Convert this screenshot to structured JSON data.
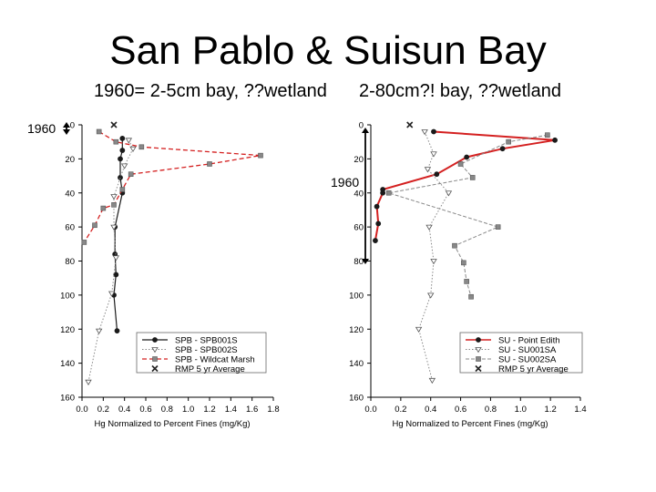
{
  "slide": {
    "title": "San Pablo & Suisun Bay",
    "subtitle_left": "1960= 2-5cm bay, ??wetland",
    "subtitle_right": "2-80cm?! bay, ??wetland"
  },
  "annotations": {
    "left_marker": "1960",
    "right_marker": "1960"
  },
  "colors": {
    "red": "#d42020",
    "dark": "#1a1a1a",
    "grey": "#888888",
    "axis": "#000000"
  },
  "chart_data": [
    {
      "type": "line",
      "orientation": "depth-profile",
      "xlabel": "Hg Normalized to Percent Fines (mg/Kg)",
      "ylabel": "",
      "xlim": [
        0,
        1.8
      ],
      "ylim": [
        0,
        160
      ],
      "xticks": [
        "0.0",
        "0.2",
        "0.4",
        "0.6",
        "0.8",
        "1.0",
        "1.2",
        "1.4",
        "1.6",
        "1.8"
      ],
      "yticks": [
        "0",
        "20",
        "40",
        "60",
        "80",
        "100",
        "120",
        "140",
        "160"
      ],
      "legend_position": "bottom-right",
      "series": [
        {
          "name": "SPB - SPB001S",
          "marker": "circle",
          "style": "solid-dark",
          "points": [
            [
              0.38,
              8
            ],
            [
              0.38,
              15
            ],
            [
              0.36,
              20
            ],
            [
              0.36,
              31
            ],
            [
              0.38,
              40
            ],
            [
              0.31,
              60
            ],
            [
              0.31,
              76
            ],
            [
              0.32,
              88
            ],
            [
              0.3,
              100
            ],
            [
              0.33,
              121
            ]
          ]
        },
        {
          "name": "SPB - SPB002S",
          "marker": "triangle",
          "style": "dotted-grey",
          "points": [
            [
              0.44,
              9
            ],
            [
              0.48,
              14
            ],
            [
              0.4,
              24
            ],
            [
              0.3,
              42
            ],
            [
              0.3,
              60
            ],
            [
              0.32,
              78
            ],
            [
              0.28,
              99
            ],
            [
              0.16,
              121
            ],
            [
              0.06,
              151
            ]
          ]
        },
        {
          "name": "SPB - Wildcat Marsh",
          "marker": "square",
          "style": "dashed-red",
          "points": [
            [
              0.16,
              4
            ],
            [
              0.32,
              10
            ],
            [
              0.56,
              13
            ],
            [
              1.68,
              18
            ],
            [
              1.2,
              23
            ],
            [
              0.46,
              29
            ],
            [
              0.38,
              38
            ],
            [
              0.3,
              47
            ],
            [
              0.2,
              49
            ],
            [
              0.12,
              59
            ],
            [
              0.02,
              69
            ]
          ]
        },
        {
          "name": "RMP 5 yr Average",
          "marker": "x",
          "style": "none",
          "points": [
            [
              0.3,
              0
            ]
          ]
        }
      ]
    },
    {
      "type": "line",
      "orientation": "depth-profile",
      "xlabel": "Hg Normalized to Percent Fines (mg/Kg)",
      "ylabel": "",
      "xlim": [
        0,
        1.4
      ],
      "ylim": [
        0,
        160
      ],
      "xticks": [
        "0.0",
        "0.2",
        "0.4",
        "0.6",
        "0.8",
        "1.0",
        "1.2",
        "1.4"
      ],
      "yticks": [
        "0",
        "20",
        "40",
        "60",
        "80",
        "100",
        "120",
        "140",
        "160"
      ],
      "legend_position": "bottom-right",
      "series": [
        {
          "name": "SU - Point Edith",
          "marker": "circle",
          "style": "solid-red",
          "points": [
            [
              0.42,
              4
            ],
            [
              1.23,
              9
            ],
            [
              0.88,
              14
            ],
            [
              0.64,
              19
            ],
            [
              0.44,
              29
            ],
            [
              0.08,
              38
            ],
            [
              0.08,
              40
            ],
            [
              0.04,
              48
            ],
            [
              0.05,
              58
            ],
            [
              0.03,
              68
            ]
          ]
        },
        {
          "name": "SU - SU001SA",
          "marker": "triangle",
          "style": "dotted-grey",
          "points": [
            [
              0.36,
              4
            ],
            [
              0.42,
              17
            ],
            [
              0.38,
              26
            ],
            [
              0.52,
              40
            ],
            [
              0.39,
              60
            ],
            [
              0.42,
              80
            ],
            [
              0.4,
              100
            ],
            [
              0.32,
              120
            ],
            [
              0.41,
              150
            ]
          ]
        },
        {
          "name": "SU - SU002SA",
          "marker": "square",
          "style": "dashed-grey",
          "points": [
            [
              1.18,
              6
            ],
            [
              0.92,
              10
            ],
            [
              0.6,
              23
            ],
            [
              0.68,
              31
            ],
            [
              0.12,
              40
            ],
            [
              0.85,
              60
            ],
            [
              0.56,
              71
            ],
            [
              0.62,
              81
            ],
            [
              0.64,
              92
            ],
            [
              0.67,
              101
            ]
          ]
        },
        {
          "name": "RMP 5 yr Average",
          "marker": "x",
          "style": "none",
          "points": [
            [
              0.26,
              0
            ]
          ]
        }
      ]
    }
  ]
}
